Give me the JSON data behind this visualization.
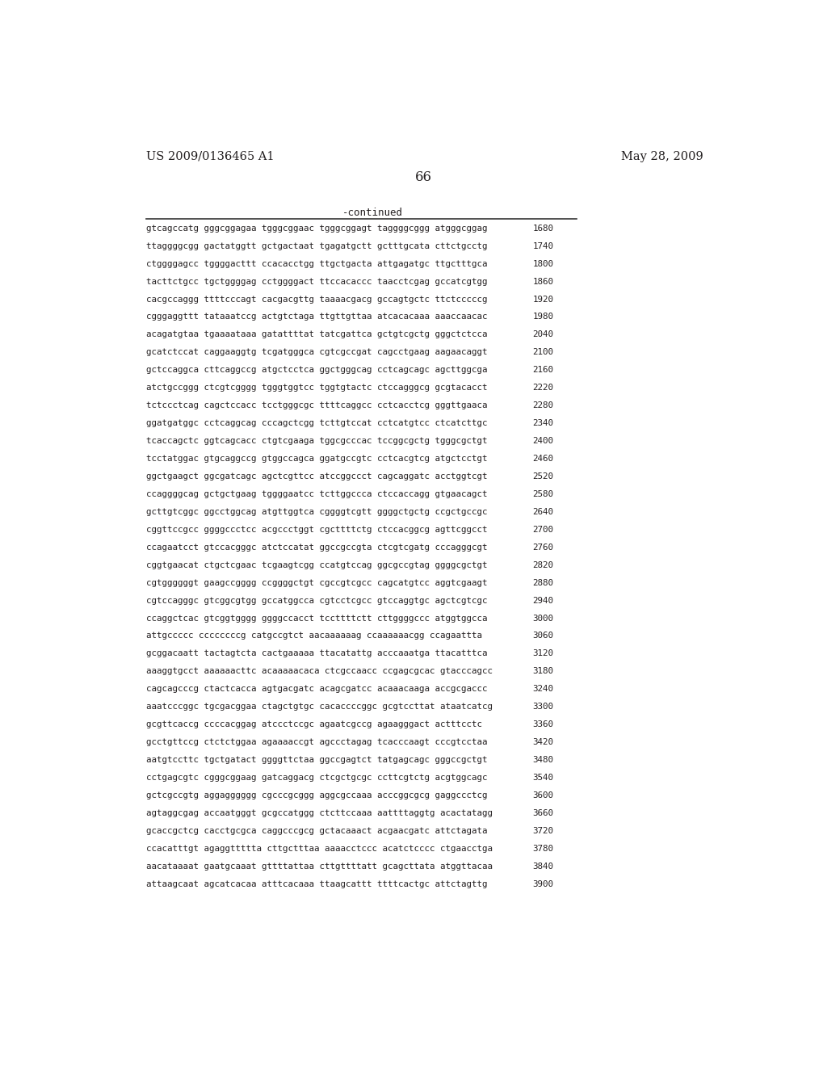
{
  "header_left": "US 2009/0136465 A1",
  "header_right": "May 28, 2009",
  "page_number": "66",
  "continued_label": "-continued",
  "background_color": "#ffffff",
  "text_color": "#231f20",
  "sequence_lines": [
    [
      "gtcagccatg gggcggagaa tgggcggaac tgggcggagt taggggcggg atgggcggag",
      "1680"
    ],
    [
      "ttaggggcgg gactatggtt gctgactaat tgagatgctt gctttgcata cttctgcctg",
      "1740"
    ],
    [
      "ctggggagcc tggggacttt ccacacctgg ttgctgacta attgagatgc ttgctttgca",
      "1800"
    ],
    [
      "tacttctgcc tgctggggag cctggggact ttccacaccc taacctcgag gccatcgtgg",
      "1860"
    ],
    [
      "cacgccaggg ttttcccagt cacgacgttg taaaacgacg gccagtgctc ttctcccccg",
      "1920"
    ],
    [
      "cgggaggttt tataaatccg actgtctaga ttgttgttaa atcacacaaa aaaccaacac",
      "1980"
    ],
    [
      "acagatgtaa tgaaaataaa gatattttat tatcgattca gctgtcgctg gggctctcca",
      "2040"
    ],
    [
      "gcatctccat caggaaggtg tcgatgggca cgtcgccgat cagcctgaag aagaacaggt",
      "2100"
    ],
    [
      "gctccaggca cttcaggccg atgctcctca ggctgggcag cctcagcagc agcttggcga",
      "2160"
    ],
    [
      "atctgccggg ctcgtcgggg tgggtggtcc tggtgtactc ctccagggcg gcgtacacct",
      "2220"
    ],
    [
      "tctccctcag cagctccacc tcctgggcgc ttttcaggcc cctcacctcg gggttgaaca",
      "2280"
    ],
    [
      "ggatgatggc cctcaggcag cccagctcgg tcttgtccat cctcatgtcc ctcatcttgc",
      "2340"
    ],
    [
      "tcaccagctc ggtcagcacc ctgtcgaaga tggcgcccac tccggcgctg tgggcgctgt",
      "2400"
    ],
    [
      "tcctatggac gtgcaggccg gtggccagca ggatgccgtc cctcacgtcg atgctcctgt",
      "2460"
    ],
    [
      "ggctgaagct ggcgatcagc agctcgttcc atccggccct cagcaggatc acctggtcgt",
      "2520"
    ],
    [
      "ccaggggcag gctgctgaag tggggaatcc tcttggccca ctccaccagg gtgaacagct",
      "2580"
    ],
    [
      "gcttgtcggc ggcctggcag atgttggtca cggggtcgtt ggggctgctg ccgctgccgc",
      "2640"
    ],
    [
      "cggttccgcc ggggccctcc acgccctggt cgcttttctg ctccacggcg agttcggcct",
      "2700"
    ],
    [
      "ccagaatcct gtccacgggc atctccatat ggccgccgta ctcgtcgatg cccagggcgt",
      "2760"
    ],
    [
      "cggtgaacat ctgctcgaac tcgaagtcgg ccatgtccag ggcgccgtag ggggcgctgt",
      "2820"
    ],
    [
      "cgtggggggt gaagccgggg ccggggctgt cgccgtcgcc cagcatgtcc aggtcgaagt",
      "2880"
    ],
    [
      "cgtccagggc gtcggcgtgg gccatggcca cgtcctcgcc gtccaggtgc agctcgtcgc",
      "2940"
    ],
    [
      "ccaggctcac gtcggtgggg ggggccacct tccttttctt cttggggccc atggtggcca",
      "3000"
    ],
    [
      "attgccccc ccccccccg catgccgtct aacaaaaaag ccaaaaaacgg ccagaattta",
      "3060"
    ],
    [
      "gcggacaatt tactagtcta cactgaaaaa ttacatattg acccaaatga ttacatttca",
      "3120"
    ],
    [
      "aaaggtgcct aaaaaacttc acaaaaacaca ctcgccaacc ccgagcgcac gtacccagcc",
      "3180"
    ],
    [
      "cagcagcccg ctactcacca agtgacgatc acagcgatcc acaaacaaga accgcgaccc",
      "3240"
    ],
    [
      "aaatcccggc tgcgacggaa ctagctgtgc cacaccccggc gcgtccttat ataatcatcg",
      "3300"
    ],
    [
      "gcgttcaccg ccccacggag atccctccgc agaatcgccg agaagggact actttcctc",
      "3360"
    ],
    [
      "gcctgttccg ctctctggaa agaaaaccgt agccctagag tcacccaagt cccgtcctaa",
      "3420"
    ],
    [
      "aatgtccttc tgctgatact ggggttctaa ggccgagtct tatgagcagc gggccgctgt",
      "3480"
    ],
    [
      "cctgagcgtc cgggcggaag gatcaggacg ctcgctgcgc ccttcgtctg acgtggcagc",
      "3540"
    ],
    [
      "gctcgccgtg aggagggggg cgcccgcggg aggcgccaaa acccggcgcg gaggccctcg",
      "3600"
    ],
    [
      "agtaggcgag accaatgggt gcgccatggg ctcttccaaa aattttaggtg acactatagg",
      "3660"
    ],
    [
      "gcaccgctcg cacctgcgca caggcccgcg gctacaaact acgaacgatc attctagata",
      "3720"
    ],
    [
      "ccacatttgt agaggttttta cttgctttaa aaaacctccc acatctcccc ctgaacctga",
      "3780"
    ],
    [
      "aacataaaat gaatgcaaat gttttattaa cttgttttatt gcagcttata atggttacaa",
      "3840"
    ],
    [
      "attaagcaat agcatcacaa atttcacaaa ttaagcattt ttttcactgc attctagttg",
      "3900"
    ]
  ]
}
